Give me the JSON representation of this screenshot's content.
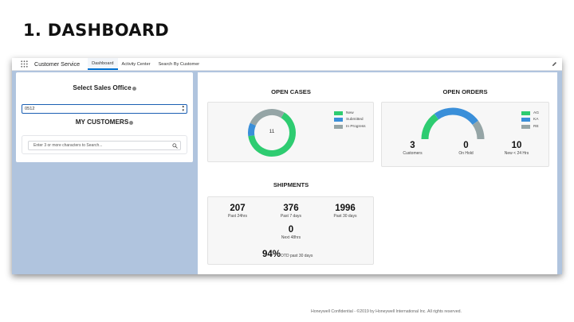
{
  "slide": {
    "title": "1. DASHBOARD",
    "footer": "Honeywell Confidential - ©2019 by Honeywell International Inc. All rights reserved."
  },
  "topbar": {
    "app_name": "Customer Service",
    "tabs": [
      {
        "label": "Dashboard",
        "active": true
      },
      {
        "label": "Activity Center",
        "active": false
      },
      {
        "label": "Search By Customer",
        "active": false
      }
    ]
  },
  "left_panel": {
    "sales_office_title": "Select Sales Office",
    "sales_office_value": "0512",
    "customers_title": "MY CUSTOMERS",
    "search_placeholder": "Enter 3 or more characters to Search..."
  },
  "open_cases": {
    "title": "OPEN CASES",
    "center_value": "11",
    "legend": [
      {
        "label": "New",
        "color": "#2ecc71"
      },
      {
        "label": "Submitted",
        "color": "#3a8fd9"
      },
      {
        "label": "In Progress",
        "color": "#95a5a6"
      }
    ],
    "segments": [
      {
        "name": "New",
        "value": 0.64,
        "color": "#2ecc71"
      },
      {
        "name": "Submitted",
        "value": 0.09,
        "color": "#3a8fd9"
      },
      {
        "name": "In Progress",
        "value": 0.27,
        "color": "#95a5a6"
      }
    ]
  },
  "open_orders": {
    "title": "OPEN ORDERS",
    "legend": [
      {
        "label": "AG",
        "color": "#2ecc71"
      },
      {
        "label": "KA",
        "color": "#3a8fd9"
      },
      {
        "label": "RE",
        "color": "#95a5a6"
      }
    ],
    "segments": [
      {
        "name": "AG",
        "value": 0.3,
        "color": "#2ecc71"
      },
      {
        "name": "KA",
        "value": 0.5,
        "color": "#3a8fd9"
      },
      {
        "name": "RE",
        "value": 0.2,
        "color": "#95a5a6"
      }
    ],
    "stats": [
      {
        "value": "3",
        "label": "Customers"
      },
      {
        "value": "0",
        "label": "On Hold"
      },
      {
        "value": "10",
        "label": "New < 24 Hrs"
      }
    ]
  },
  "shipments": {
    "title": "SHIPMENTS",
    "stats": [
      {
        "value": "207",
        "label": "Past 24hrs"
      },
      {
        "value": "376",
        "label": "Past 7 days"
      },
      {
        "value": "1996",
        "label": "Past 30 days"
      }
    ],
    "next": {
      "value": "0",
      "label": "Next 48hrs"
    },
    "otd": {
      "value": "94%",
      "label": "OTD past 30 days"
    }
  }
}
